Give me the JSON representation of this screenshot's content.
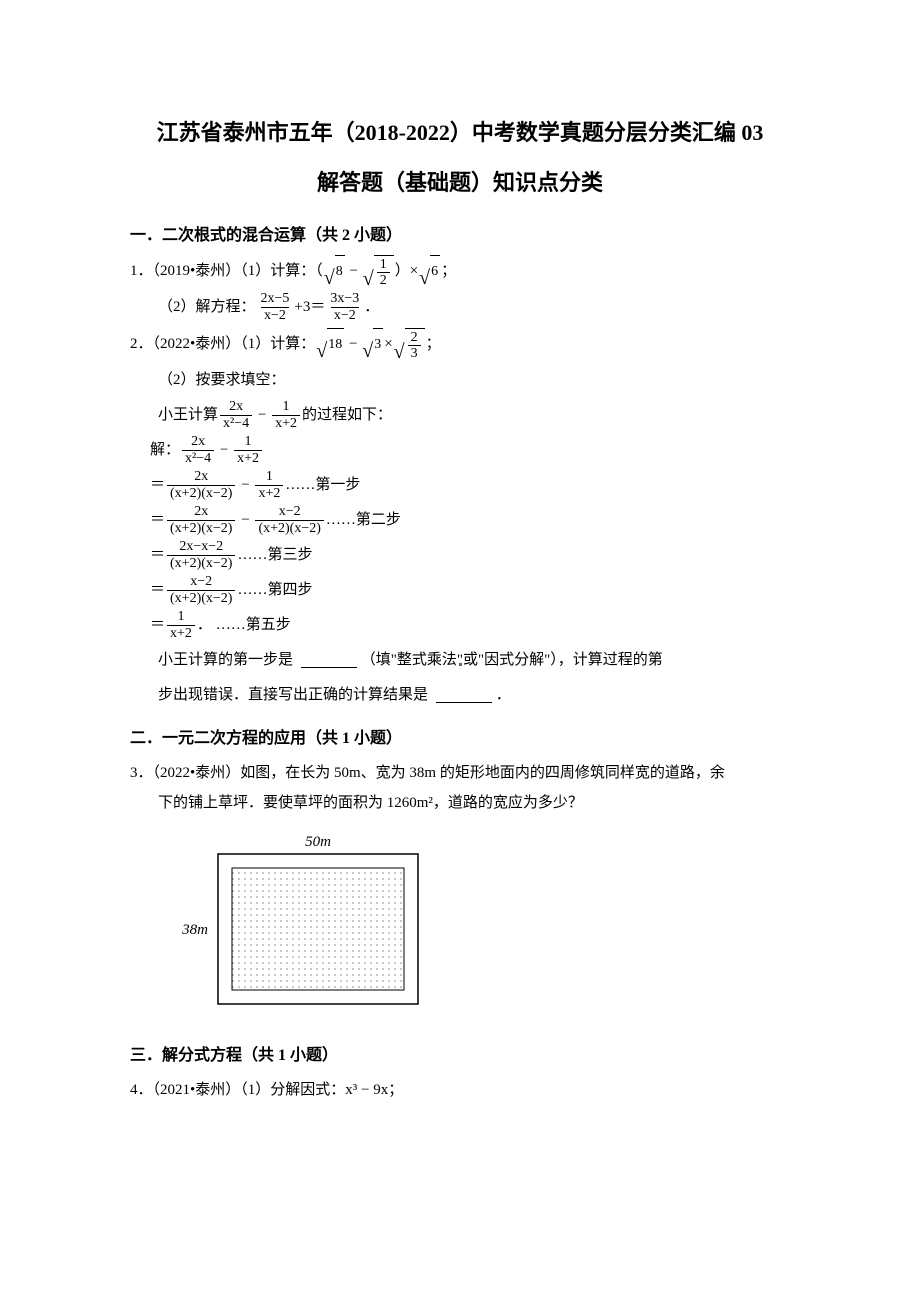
{
  "title": {
    "line1": "江苏省泰州市五年（2018-2022）中考数学真题分层分类汇编 03",
    "line2": "解答题（基础题）知识点分类"
  },
  "sections": {
    "s1": {
      "heading": "一．二次根式的混合运算（共 2 小题）"
    },
    "s2": {
      "heading": "二．一元二次方程的应用（共 1 小题）"
    },
    "s3": {
      "heading": "三．解分式方程（共 1 小题）"
    }
  },
  "p1": {
    "prefix": "1．（2019•泰州）（1）计算：（",
    "sqrt8": "8",
    "minus": " − ",
    "half_num": "1",
    "half_den": "2",
    "paren_times": "）×",
    "sqrt6": "6",
    "semi": "；",
    "sub2_label": "（2）解方程：",
    "f1_num": "2x−5",
    "f1_den": "x−2",
    "plus3": "+3＝",
    "f2_num": "3x−3",
    "f2_den": "x−2",
    "period": "．"
  },
  "p2": {
    "prefix": "2．（2022•泰州）（1）计算：",
    "sqrt18": "18",
    "minus": " − ",
    "sqrt3": "3",
    "times": "×",
    "twothirds_num": "2",
    "twothirds_den": "3",
    "semi": "；",
    "sub2": "（2）按要求填空：",
    "xw_intro_a": "小王计算",
    "xw_f1_num": "2x",
    "xw_f1_den": "x²−4",
    "xw_minus": " − ",
    "xw_f2_num": "1",
    "xw_f2_den": "x+2",
    "xw_intro_b": "的过程如下：",
    "sol_label": "解：",
    "eq": "＝",
    "s1_f1_num": "2x",
    "s1_f1_den": "(x+2)(x−2)",
    "s1_minus": " − ",
    "s1_f2_num": "1",
    "s1_f2_den": "x+2",
    "s1_tag": "……第一步",
    "s2_f1_num": "2x",
    "s2_f1_den": "(x+2)(x−2)",
    "s2_minus": " − ",
    "s2_f2_num": "x−2",
    "s2_f2_den": "(x+2)(x−2)",
    "s2_tag": "……第二步",
    "s3_num": "2x−x−2",
    "s3_den": "(x+2)(x−2)",
    "s3_tag": "……第三步",
    "s4_num": "x−2",
    "s4_den": "(x+2)(x−2)",
    "s4_tag": "……第四步",
    "s5_num": "1",
    "s5_den": "x+2",
    "s5_period": "．",
    "s5_tag": " ……第五步",
    "q_a": "小王计算的第一步是 ",
    "q_b": "（填\"整式乘法\"或\"因式分解\"），计算过程的第",
    "q_c": "步出现错误．直接写出正确的计算结果是 ",
    "q_d": "．"
  },
  "p3": {
    "text_a": "3．（2022•泰州）如图，在长为 50m、宽为 38m 的矩形地面内的四周修筑同样宽的道路，余",
    "text_b": "下的铺上草坪．要使草坪的面积为 1260m²，道路的宽应为多少？",
    "figure": {
      "width_label": "50m",
      "height_label": "38m",
      "outer_w": 200,
      "outer_h": 150,
      "road_w": 14,
      "colors": {
        "border": "#000000",
        "fill": "#ffffff",
        "dot": "#888888"
      }
    }
  },
  "p4": {
    "text": "4．（2021•泰州）（1）分解因式：x³ − 9x；"
  },
  "colors": {
    "text": "#000000",
    "background": "#ffffff"
  }
}
